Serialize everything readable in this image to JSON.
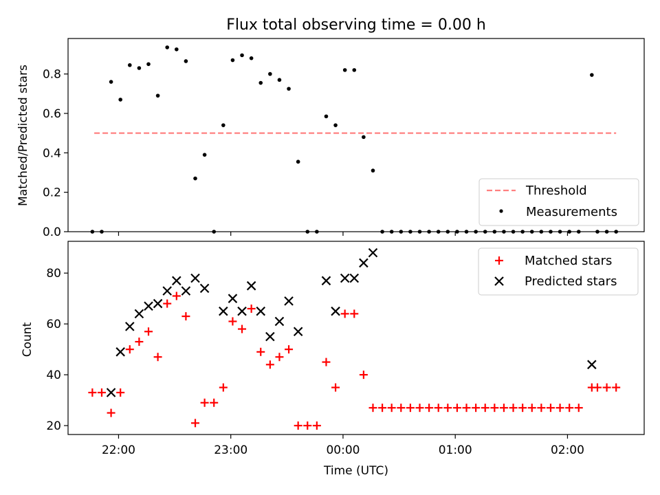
{
  "chart_data": [
    {
      "type": "scatter",
      "title": "Flux total observing time = 0.00 h",
      "xlabel": "",
      "ylabel": "Matched/Predicted stars",
      "xlim": [
        "21:33",
        "02:41"
      ],
      "ylim": [
        0,
        0.98
      ],
      "yticks": [
        "0.0",
        "0.2",
        "0.4",
        "0.6",
        "0.8"
      ],
      "legend_position": "bottom-right",
      "threshold": {
        "name": "Threshold",
        "value": 0.5,
        "x_start": "21:47",
        "x_end": "02:26",
        "color": "#ff8080",
        "style": "dashed"
      },
      "series": [
        {
          "name": "Measurements",
          "color": "#000000",
          "points": [
            [
              "21:46",
              0.0
            ],
            [
              "21:51",
              0.0
            ],
            [
              "21:56",
              0.76
            ],
            [
              "22:01",
              0.67
            ],
            [
              "22:06",
              0.845
            ],
            [
              "22:11",
              0.83
            ],
            [
              "22:16",
              0.85
            ],
            [
              "22:21",
              0.69
            ],
            [
              "22:26",
              0.935
            ],
            [
              "22:31",
              0.925
            ],
            [
              "22:36",
              0.865
            ],
            [
              "22:41",
              0.27
            ],
            [
              "22:46",
              0.39
            ],
            [
              "22:51",
              0.0
            ],
            [
              "22:56",
              0.54
            ],
            [
              "23:01",
              0.87
            ],
            [
              "23:06",
              0.895
            ],
            [
              "23:11",
              0.88
            ],
            [
              "23:16",
              0.755
            ],
            [
              "23:21",
              0.8
            ],
            [
              "23:26",
              0.77
            ],
            [
              "23:31",
              0.725
            ],
            [
              "23:36",
              0.355
            ],
            [
              "23:41",
              0.0
            ],
            [
              "23:46",
              0.0
            ],
            [
              "23:51",
              0.585
            ],
            [
              "23:56",
              0.54
            ],
            [
              "00:01",
              0.82
            ],
            [
              "00:06",
              0.82
            ],
            [
              "00:11",
              0.48
            ],
            [
              "00:16",
              0.31
            ],
            [
              "00:21",
              0.0
            ],
            [
              "00:26",
              0.0
            ],
            [
              "00:31",
              0.0
            ],
            [
              "00:36",
              0.0
            ],
            [
              "00:41",
              0.0
            ],
            [
              "00:46",
              0.0
            ],
            [
              "00:51",
              0.0
            ],
            [
              "00:56",
              0.0
            ],
            [
              "01:01",
              0.0
            ],
            [
              "01:06",
              0.0
            ],
            [
              "01:11",
              0.0
            ],
            [
              "01:16",
              0.0
            ],
            [
              "01:21",
              0.0
            ],
            [
              "01:26",
              0.0
            ],
            [
              "01:31",
              0.0
            ],
            [
              "01:36",
              0.0
            ],
            [
              "01:41",
              0.0
            ],
            [
              "01:46",
              0.0
            ],
            [
              "01:51",
              0.0
            ],
            [
              "01:56",
              0.0
            ],
            [
              "02:01",
              0.0
            ],
            [
              "02:06",
              0.0
            ],
            [
              "02:13",
              0.795
            ],
            [
              "02:16",
              0.0
            ],
            [
              "02:21",
              0.0
            ],
            [
              "02:26",
              0.0
            ]
          ]
        }
      ]
    },
    {
      "type": "scatter",
      "title": "",
      "xlabel": "Time (UTC)",
      "ylabel": "Count",
      "xlim": [
        "21:33",
        "02:41"
      ],
      "ylim": [
        16.5,
        92.5
      ],
      "yticks": [
        "20",
        "40",
        "60",
        "80"
      ],
      "xticks": [
        "22:00",
        "23:00",
        "00:00",
        "01:00",
        "02:00"
      ],
      "legend_position": "top-right",
      "series": [
        {
          "name": "Matched stars",
          "marker": "plus",
          "color": "#ff0000",
          "points": [
            [
              "21:46",
              33
            ],
            [
              "21:51",
              33
            ],
            [
              "21:56",
              25
            ],
            [
              "22:01",
              33
            ],
            [
              "22:06",
              50
            ],
            [
              "22:11",
              53
            ],
            [
              "22:16",
              57
            ],
            [
              "22:21",
              47
            ],
            [
              "22:26",
              68
            ],
            [
              "22:31",
              71
            ],
            [
              "22:36",
              63
            ],
            [
              "22:41",
              21
            ],
            [
              "22:46",
              29
            ],
            [
              "22:51",
              29
            ],
            [
              "22:56",
              35
            ],
            [
              "23:01",
              61
            ],
            [
              "23:06",
              58
            ],
            [
              "23:11",
              66
            ],
            [
              "23:16",
              49
            ],
            [
              "23:21",
              44
            ],
            [
              "23:26",
              47
            ],
            [
              "23:31",
              50
            ],
            [
              "23:36",
              20
            ],
            [
              "23:41",
              20
            ],
            [
              "23:46",
              20
            ],
            [
              "23:51",
              45
            ],
            [
              "23:56",
              35
            ],
            [
              "00:01",
              64
            ],
            [
              "00:06",
              64
            ],
            [
              "00:11",
              40
            ],
            [
              "00:16",
              27
            ],
            [
              "00:21",
              27
            ],
            [
              "00:26",
              27
            ],
            [
              "00:31",
              27
            ],
            [
              "00:36",
              27
            ],
            [
              "00:41",
              27
            ],
            [
              "00:46",
              27
            ],
            [
              "00:51",
              27
            ],
            [
              "00:56",
              27
            ],
            [
              "01:01",
              27
            ],
            [
              "01:06",
              27
            ],
            [
              "01:11",
              27
            ],
            [
              "01:16",
              27
            ],
            [
              "01:21",
              27
            ],
            [
              "01:26",
              27
            ],
            [
              "01:31",
              27
            ],
            [
              "01:36",
              27
            ],
            [
              "01:41",
              27
            ],
            [
              "01:46",
              27
            ],
            [
              "01:51",
              27
            ],
            [
              "01:56",
              27
            ],
            [
              "02:01",
              27
            ],
            [
              "02:06",
              27
            ],
            [
              "02:13",
              35
            ],
            [
              "02:16",
              35
            ],
            [
              "02:21",
              35
            ],
            [
              "02:26",
              35
            ]
          ]
        },
        {
          "name": "Predicted stars",
          "marker": "x",
          "color": "#000000",
          "points": [
            [
              "21:56",
              33
            ],
            [
              "22:01",
              49
            ],
            [
              "22:06",
              59
            ],
            [
              "22:11",
              64
            ],
            [
              "22:16",
              67
            ],
            [
              "22:21",
              68
            ],
            [
              "22:26",
              73
            ],
            [
              "22:31",
              77
            ],
            [
              "22:36",
              73
            ],
            [
              "22:41",
              78
            ],
            [
              "22:46",
              74
            ],
            [
              "22:56",
              65
            ],
            [
              "23:01",
              70
            ],
            [
              "23:06",
              65
            ],
            [
              "23:11",
              75
            ],
            [
              "23:16",
              65
            ],
            [
              "23:21",
              55
            ],
            [
              "23:26",
              61
            ],
            [
              "23:31",
              69
            ],
            [
              "23:36",
              57
            ],
            [
              "23:51",
              77
            ],
            [
              "23:56",
              65
            ],
            [
              "00:01",
              78
            ],
            [
              "00:06",
              78
            ],
            [
              "00:11",
              84
            ],
            [
              "00:16",
              88
            ],
            [
              "02:13",
              44
            ]
          ]
        }
      ]
    }
  ]
}
